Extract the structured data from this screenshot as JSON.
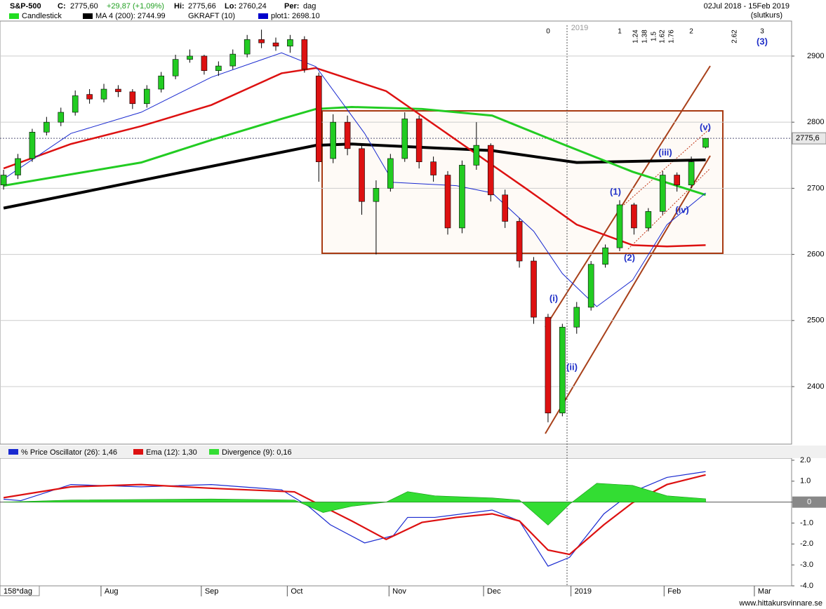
{
  "header": {
    "title": "S&P-500",
    "c_label": "C:",
    "close": "2775,60",
    "change": "+29,87 (+1,09%)",
    "hi_label": "Hi:",
    "hi": "2775,66",
    "lo_label": "Lo:",
    "lo": "2760,24",
    "per_label": "Per:",
    "per": "dag",
    "range": "02Jul 2018 - 15Feb 2019",
    "mode": "(slutkurs)",
    "period_box": "158*dag",
    "site": "www.hittakursvinnare.se",
    "legend": [
      {
        "name": "Candlestick",
        "color": "#22dd22"
      },
      {
        "name": "MA 4 (200): 2744.99",
        "color": "#000000"
      },
      {
        "name": "GKRAFT (10)"
      },
      {
        "name": "plot1: 2698.10",
        "color": "#0000cc"
      }
    ]
  },
  "annotations": [
    "0",
    "2019",
    "1",
    "1.24",
    "1.38",
    "1.5",
    "1.62",
    "1.76",
    "2",
    "2.62",
    "3",
    "(3)",
    "(v)",
    "(iii)",
    "(1)",
    "(iv)",
    "(2)",
    "(i)",
    "(ii)"
  ],
  "chart_data": [
    {
      "type": "candlestick",
      "up_color": "#22cc22",
      "down_color": "#dd1111",
      "categories": [
        null,
        null,
        null,
        null,
        null,
        null,
        null,
        null,
        null,
        null,
        null,
        null,
        null,
        null,
        null,
        null,
        null,
        null,
        null,
        null,
        null,
        null,
        null,
        null,
        null,
        null,
        null,
        null,
        null,
        null,
        null,
        null,
        null,
        null,
        null,
        null,
        null,
        null,
        null,
        null,
        null,
        null,
        null,
        null,
        null,
        null,
        null,
        null,
        null,
        null
      ],
      "open": [
        2705,
        2720,
        2745,
        2785,
        2800,
        2815,
        2842,
        2835,
        2850,
        2846,
        2828,
        2850,
        2870,
        2895,
        2900,
        2878,
        2885,
        2903,
        2925,
        2920,
        2915,
        2925,
        2870,
        2745,
        2800,
        2760,
        2680,
        2700,
        2745,
        2805,
        2740,
        2720,
        2640,
        2735,
        2765,
        2690,
        2650,
        2590,
        2505,
        2360,
        2490,
        2520,
        2585,
        2610,
        2675,
        2640,
        2665,
        2720,
        2705,
        2762
      ],
      "high": [
        2728,
        2752,
        2790,
        2808,
        2822,
        2848,
        2850,
        2858,
        2856,
        2850,
        2856,
        2876,
        2902,
        2910,
        2902,
        2892,
        2910,
        2932,
        2940,
        2928,
        2932,
        2930,
        2875,
        2812,
        2810,
        2768,
        2712,
        2752,
        2815,
        2810,
        2748,
        2726,
        2742,
        2800,
        2768,
        2698,
        2655,
        2596,
        2510,
        2495,
        2528,
        2590,
        2615,
        2682,
        2678,
        2670,
        2726,
        2724,
        2748,
        2775.66
      ],
      "low": [
        2698,
        2714,
        2740,
        2780,
        2794,
        2810,
        2828,
        2830,
        2838,
        2820,
        2822,
        2845,
        2865,
        2890,
        2872,
        2870,
        2880,
        2898,
        2912,
        2908,
        2905,
        2875,
        2710,
        2738,
        2750,
        2660,
        2600,
        2695,
        2740,
        2730,
        2710,
        2630,
        2632,
        2728,
        2680,
        2640,
        2580,
        2495,
        2346,
        2355,
        2480,
        2515,
        2580,
        2605,
        2630,
        2635,
        2660,
        2695,
        2700,
        2760.24
      ],
      "close": [
        2720,
        2745,
        2785,
        2800,
        2815,
        2840,
        2835,
        2850,
        2846,
        2828,
        2850,
        2870,
        2895,
        2900,
        2878,
        2885,
        2903,
        2925,
        2920,
        2915,
        2925,
        2880,
        2740,
        2800,
        2760,
        2680,
        2700,
        2745,
        2805,
        2740,
        2720,
        2640,
        2735,
        2765,
        2690,
        2650,
        2590,
        2505,
        2360,
        2490,
        2520,
        2585,
        2610,
        2675,
        2640,
        2665,
        2720,
        2705,
        2740,
        2775.6
      ],
      "lines": [
        {
          "color": "#000000",
          "width": 4,
          "x": [
            0,
            21.8,
            24.3,
            34.1,
            40.0,
            49
          ],
          "values": [
            2670,
            2765,
            2767,
            2757,
            2739,
            2743
          ]
        },
        {
          "color": "#22cc22",
          "width": 3,
          "x": [
            0,
            9.6,
            14.5,
            19.4,
            21.8,
            24.3,
            29.2,
            34.1,
            39.0,
            43.9,
            49
          ],
          "values": [
            2704,
            2739,
            2773,
            2805,
            2820,
            2823,
            2820,
            2810,
            2767,
            2725,
            2690
          ]
        },
        {
          "color": "#dd1111",
          "width": 2.5,
          "x": [
            0,
            4.7,
            9.6,
            14.5,
            19.4,
            21.8,
            26.7,
            31.6,
            36.5,
            40.0,
            43.9,
            46.3,
            49
          ],
          "values": [
            2730,
            2767,
            2794,
            2826,
            2874,
            2882,
            2847,
            2773,
            2699,
            2645,
            2614,
            2612,
            2614
          ]
        },
        {
          "color": "#1a2ad0",
          "width": 1,
          "x": [
            0,
            4.7,
            9.6,
            14.5,
            19.4,
            21.8,
            25.2,
            27.2,
            31.6,
            34.1,
            37.0,
            39.0,
            41.4,
            43.9,
            46.3,
            49
          ],
          "values": [
            2714,
            2783,
            2815,
            2868,
            2905,
            2884,
            2783,
            2709,
            2704,
            2693,
            2635,
            2571,
            2521,
            2561,
            2645,
            2693
          ]
        }
      ],
      "last_price": {
        "value": 2775.6,
        "label": "2775,6"
      },
      "xlim": [
        -0.25,
        55
      ],
      "ylim": [
        2313,
        2953
      ],
      "xticks": [
        {
          "value": 6.8,
          "label": "Aug"
        },
        {
          "value": 13.8,
          "label": "Sep"
        },
        {
          "value": 19.8,
          "label": "Oct"
        },
        {
          "value": 26.9,
          "label": "Nov"
        },
        {
          "value": 33.5,
          "label": "Dec"
        },
        {
          "value": 39.6,
          "label": "2019"
        },
        {
          "value": 46.1,
          "label": "Feb"
        },
        {
          "value": 52.4,
          "label": "Mar"
        }
      ],
      "yticks": [
        2400,
        2500,
        2600,
        2700,
        2800,
        2900
      ],
      "grid": true
    },
    {
      "type": "line",
      "series": [
        {
          "name": "% Price Oscillator (26): 1,46",
          "color": "#1a2ad0",
          "x": [
            0,
            1.2,
            4.7,
            9.6,
            14.5,
            19.4,
            21.3,
            22.8,
            25.2,
            27.2,
            28.2,
            30.1,
            34.1,
            36.0,
            38.0,
            39.5,
            41.9,
            43.9,
            46.3,
            49
          ],
          "values": [
            0.14,
            0.07,
            0.84,
            0.73,
            0.84,
            0.59,
            -0.21,
            -1.08,
            -1.95,
            -1.6,
            -0.73,
            -0.73,
            -0.38,
            -0.9,
            -3.06,
            -2.64,
            -0.56,
            0.49,
            1.18,
            1.46
          ]
        },
        {
          "name": "Ema (12): 1,30",
          "color": "#dd1111",
          "x": [
            0,
            4.7,
            9.6,
            14.5,
            20.3,
            22.3,
            24.3,
            26.7,
            29.2,
            31.6,
            34.1,
            36.0,
            38.0,
            39.5,
            41.9,
            43.9,
            46.3,
            49
          ],
          "values": [
            0.21,
            0.73,
            0.84,
            0.66,
            0.49,
            -0.21,
            -0.9,
            -1.78,
            -0.97,
            -0.73,
            -0.56,
            -0.9,
            -2.29,
            -2.5,
            -1.08,
            -0.03,
            0.84,
            1.3
          ]
        },
        {
          "name": "Divergence (9): 0,16",
          "color": "#33dd33",
          "area": true,
          "x": [
            0,
            4.7,
            14.5,
            20.3,
            22.3,
            24.3,
            26.7,
            28.2,
            30.1,
            34.1,
            36.0,
            38.0,
            39.5,
            41.4,
            43.9,
            46.3,
            49
          ],
          "values": [
            0.0,
            0.1,
            0.15,
            0.1,
            -0.5,
            -0.2,
            0.0,
            0.5,
            0.3,
            0.2,
            0.1,
            -1.1,
            -0.1,
            0.9,
            0.8,
            0.3,
            0.16
          ]
        }
      ],
      "xlim": [
        -0.25,
        55
      ],
      "ylim": [
        -4.0,
        2.1
      ],
      "yticks": [
        {
          "value": 2,
          "label": "2.0"
        },
        {
          "value": 1,
          "label": "1.0"
        },
        0,
        {
          "value": -1,
          "label": "-1.0"
        },
        {
          "value": -2,
          "label": "-2.0"
        },
        {
          "value": -3,
          "label": "-3.0"
        },
        {
          "value": -4,
          "label": "-4.0"
        }
      ]
    }
  ]
}
